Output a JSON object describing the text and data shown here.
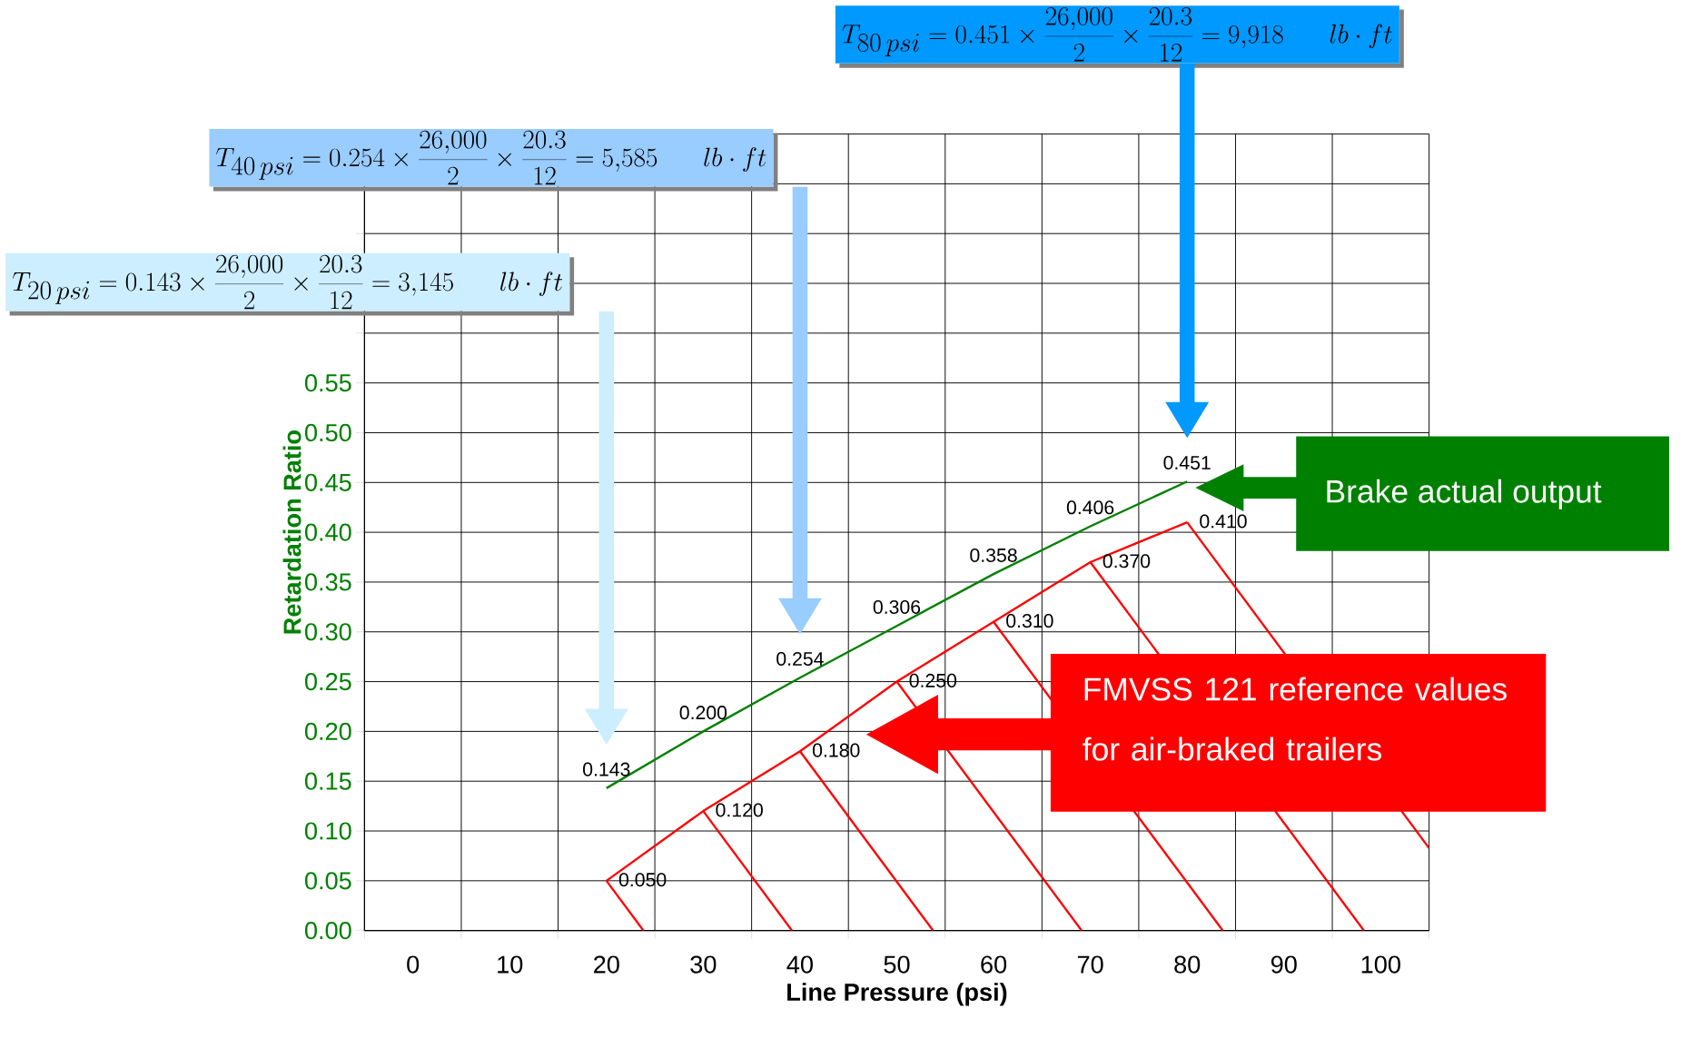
{
  "chart_data": {
    "type": "line",
    "xlabel": "Line Pressure (psi)",
    "ylabel": "Retardation Ratio",
    "categories": [
      "0",
      "10",
      "20",
      "30",
      "40",
      "50",
      "60",
      "70",
      "80",
      "90",
      "100"
    ],
    "series": [
      {
        "color": "#008000",
        "values": [
          null,
          null,
          0.143,
          0.2,
          0.254,
          0.306,
          0.358,
          0.406,
          0.451,
          null,
          null
        ],
        "value_labels": [
          null,
          null,
          "0.143",
          "0.200",
          "0.254",
          "0.306",
          "0.358",
          "0.406",
          "0.451",
          null,
          null
        ]
      },
      {
        "color": "#ff0000",
        "values": [
          null,
          null,
          0.05,
          0.12,
          0.18,
          0.25,
          0.31,
          0.37,
          0.41,
          null,
          null
        ],
        "value_labels": [
          null,
          null,
          "0.050",
          "0.120",
          "0.180",
          "0.250",
          "0.310",
          "0.370",
          "0.410",
          null,
          null
        ]
      }
    ],
    "ylim": [
      0,
      0.8
    ],
    "yticks": [
      {
        "value": 0,
        "label": "0.00"
      },
      {
        "value": 0.05,
        "label": "0.05"
      },
      {
        "value": 0.1,
        "label": "0.10"
      },
      {
        "value": 0.15,
        "label": "0.15"
      },
      {
        "value": 0.2,
        "label": "0.20"
      },
      {
        "value": 0.25,
        "label": "0.25"
      },
      {
        "value": 0.3,
        "label": "0.30"
      },
      {
        "value": 0.35,
        "label": "0.35"
      },
      {
        "value": 0.4,
        "label": "0.40"
      },
      {
        "value": 0.45,
        "label": "0.45"
      },
      {
        "value": 0.5,
        "label": "0.50"
      },
      {
        "value": 0.55,
        "label": "0.55"
      },
      {
        "value": 0.6,
        "label": null
      },
      {
        "value": 0.65,
        "label": null
      },
      {
        "value": 0.7,
        "label": null
      },
      {
        "value": 0.75,
        "label": null
      },
      {
        "value": 0.8,
        "label": null
      }
    ],
    "grid": true,
    "marker": "none",
    "line_style": "solid",
    "annotations": [
      "T_{80\\,psi}=0.451\\times\\frac{26{,}000}{2}\\times\\frac{20.3}{12}=9{,}918\\quad lb\\cdot ft",
      "T_{40\\,psi}=0.254\\times\\frac{26{,}000}{2}\\times\\frac{20.3}{12}=5{,}585\\quad lb\\cdot ft",
      "T_{20\\,psi}=0.143\\times\\frac{26{,}000}{2}\\times\\frac{20.3}{12}=3{,}145\\quad lb\\cdot ft",
      "Brake actual output",
      "FMVSS 121 reference values for air-braked trailers"
    ]
  }
}
